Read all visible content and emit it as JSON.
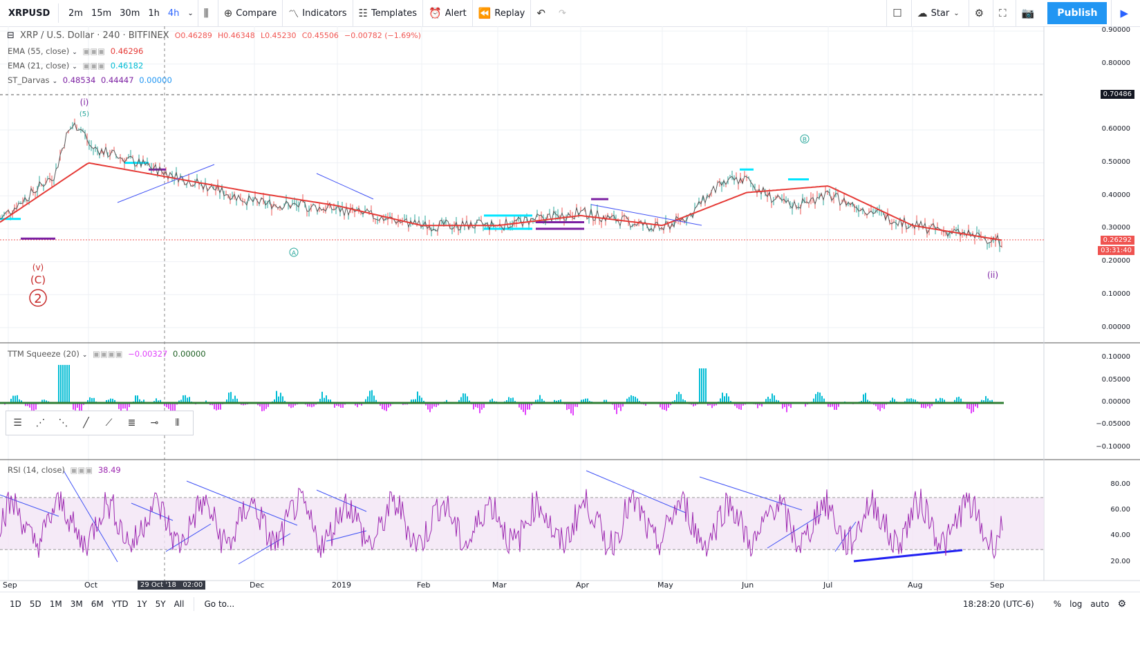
{
  "toolbar": {
    "symbol": "XRPUSD",
    "timeframes": [
      "2m",
      "15m",
      "30m",
      "1h",
      "4h"
    ],
    "active_timeframe": "4h",
    "compare": "Compare",
    "indicators": "Indicators",
    "templates": "Templates",
    "alert": "Alert",
    "replay": "Replay",
    "star": "Star",
    "publish": "Publish"
  },
  "legend": {
    "title": "XRP / U.S. Dollar · 240 · BITFINEX",
    "o": "O0.46289",
    "h": "H0.46348",
    "l": "L0.45230",
    "c": "C0.45506",
    "chg": "−0.00782 (−1.69%)",
    "ema55_name": "EMA (55, close)",
    "ema55_val": "0.46296",
    "ema21_name": "EMA (21, close)",
    "ema21_val": "0.46182",
    "darvas_name": "ST_Darvas",
    "darvas_v1": "0.48534",
    "darvas_v2": "0.44447",
    "darvas_v3": "0.00000",
    "ttm_name": "TTM Squeeze (20)",
    "ttm_v1": "−0.00327",
    "ttm_v2": "0.00000",
    "rsi_name": "RSI (14, close)",
    "rsi_val": "38.49"
  },
  "price_axis": [
    "0.90000",
    "0.80000",
    "0.70486",
    "0.60000",
    "0.50000",
    "0.40000",
    "0.30000",
    "0.26292",
    "03:31:40",
    "0.20000",
    "0.10000",
    "0.00000"
  ],
  "ttm_axis": [
    "0.10000",
    "0.05000",
    "0.00000",
    "−0.05000",
    "−0.10000"
  ],
  "rsi_axis": [
    "80.00",
    "60.00",
    "40.00",
    "20.00"
  ],
  "x_axis": [
    "Sep",
    "Oct",
    "29 Oct '18   02:00",
    "Dec",
    "2019",
    "Feb",
    "Mar",
    "Apr",
    "May",
    "Jun",
    "Jul",
    "Aug",
    "Sep"
  ],
  "wave_labels": {
    "v": "(v)",
    "C": "(C)",
    "two": "2",
    "i": "(i)",
    "five": "(5)",
    "A": "A",
    "B": "B",
    "ii": "(ii)"
  },
  "ranges": [
    "1D",
    "5D",
    "1M",
    "3M",
    "6M",
    "YTD",
    "1Y",
    "5Y",
    "All"
  ],
  "goto": "Go to...",
  "clock": "18:28:20 (UTC-6)",
  "pct": "%",
  "log": "log",
  "auto": "auto",
  "colors": {
    "up": "#26a69a",
    "down": "#ef5350",
    "ema": "#e53935",
    "cyan": "#00e5ff",
    "purple": "#7b1fa2",
    "rsi": "#9c27b0"
  },
  "chart_data": {
    "type": "line",
    "series": [
      {
        "name": "XRP / U.S. Dollar",
        "x": [
          "Sep",
          "Oct",
          "Dec",
          "2019",
          "Feb",
          "Mar",
          "Apr",
          "May",
          "Jun",
          "Jul",
          "Aug",
          "Sep"
        ],
        "values": [
          0.33,
          0.55,
          0.38,
          0.36,
          0.31,
          0.31,
          0.35,
          0.3,
          0.43,
          0.4,
          0.31,
          0.263
        ]
      },
      {
        "name": "EMA (55, close)",
        "x": [
          "Sep",
          "Oct",
          "Dec",
          "2019",
          "Feb",
          "Mar",
          "Apr",
          "May",
          "Jun",
          "Jul",
          "Aug",
          "Sep"
        ],
        "values": [
          0.32,
          0.5,
          0.41,
          0.37,
          0.31,
          0.31,
          0.34,
          0.31,
          0.41,
          0.43,
          0.31,
          0.265
        ]
      }
    ],
    "ylim": [
      0,
      0.9
    ]
  }
}
